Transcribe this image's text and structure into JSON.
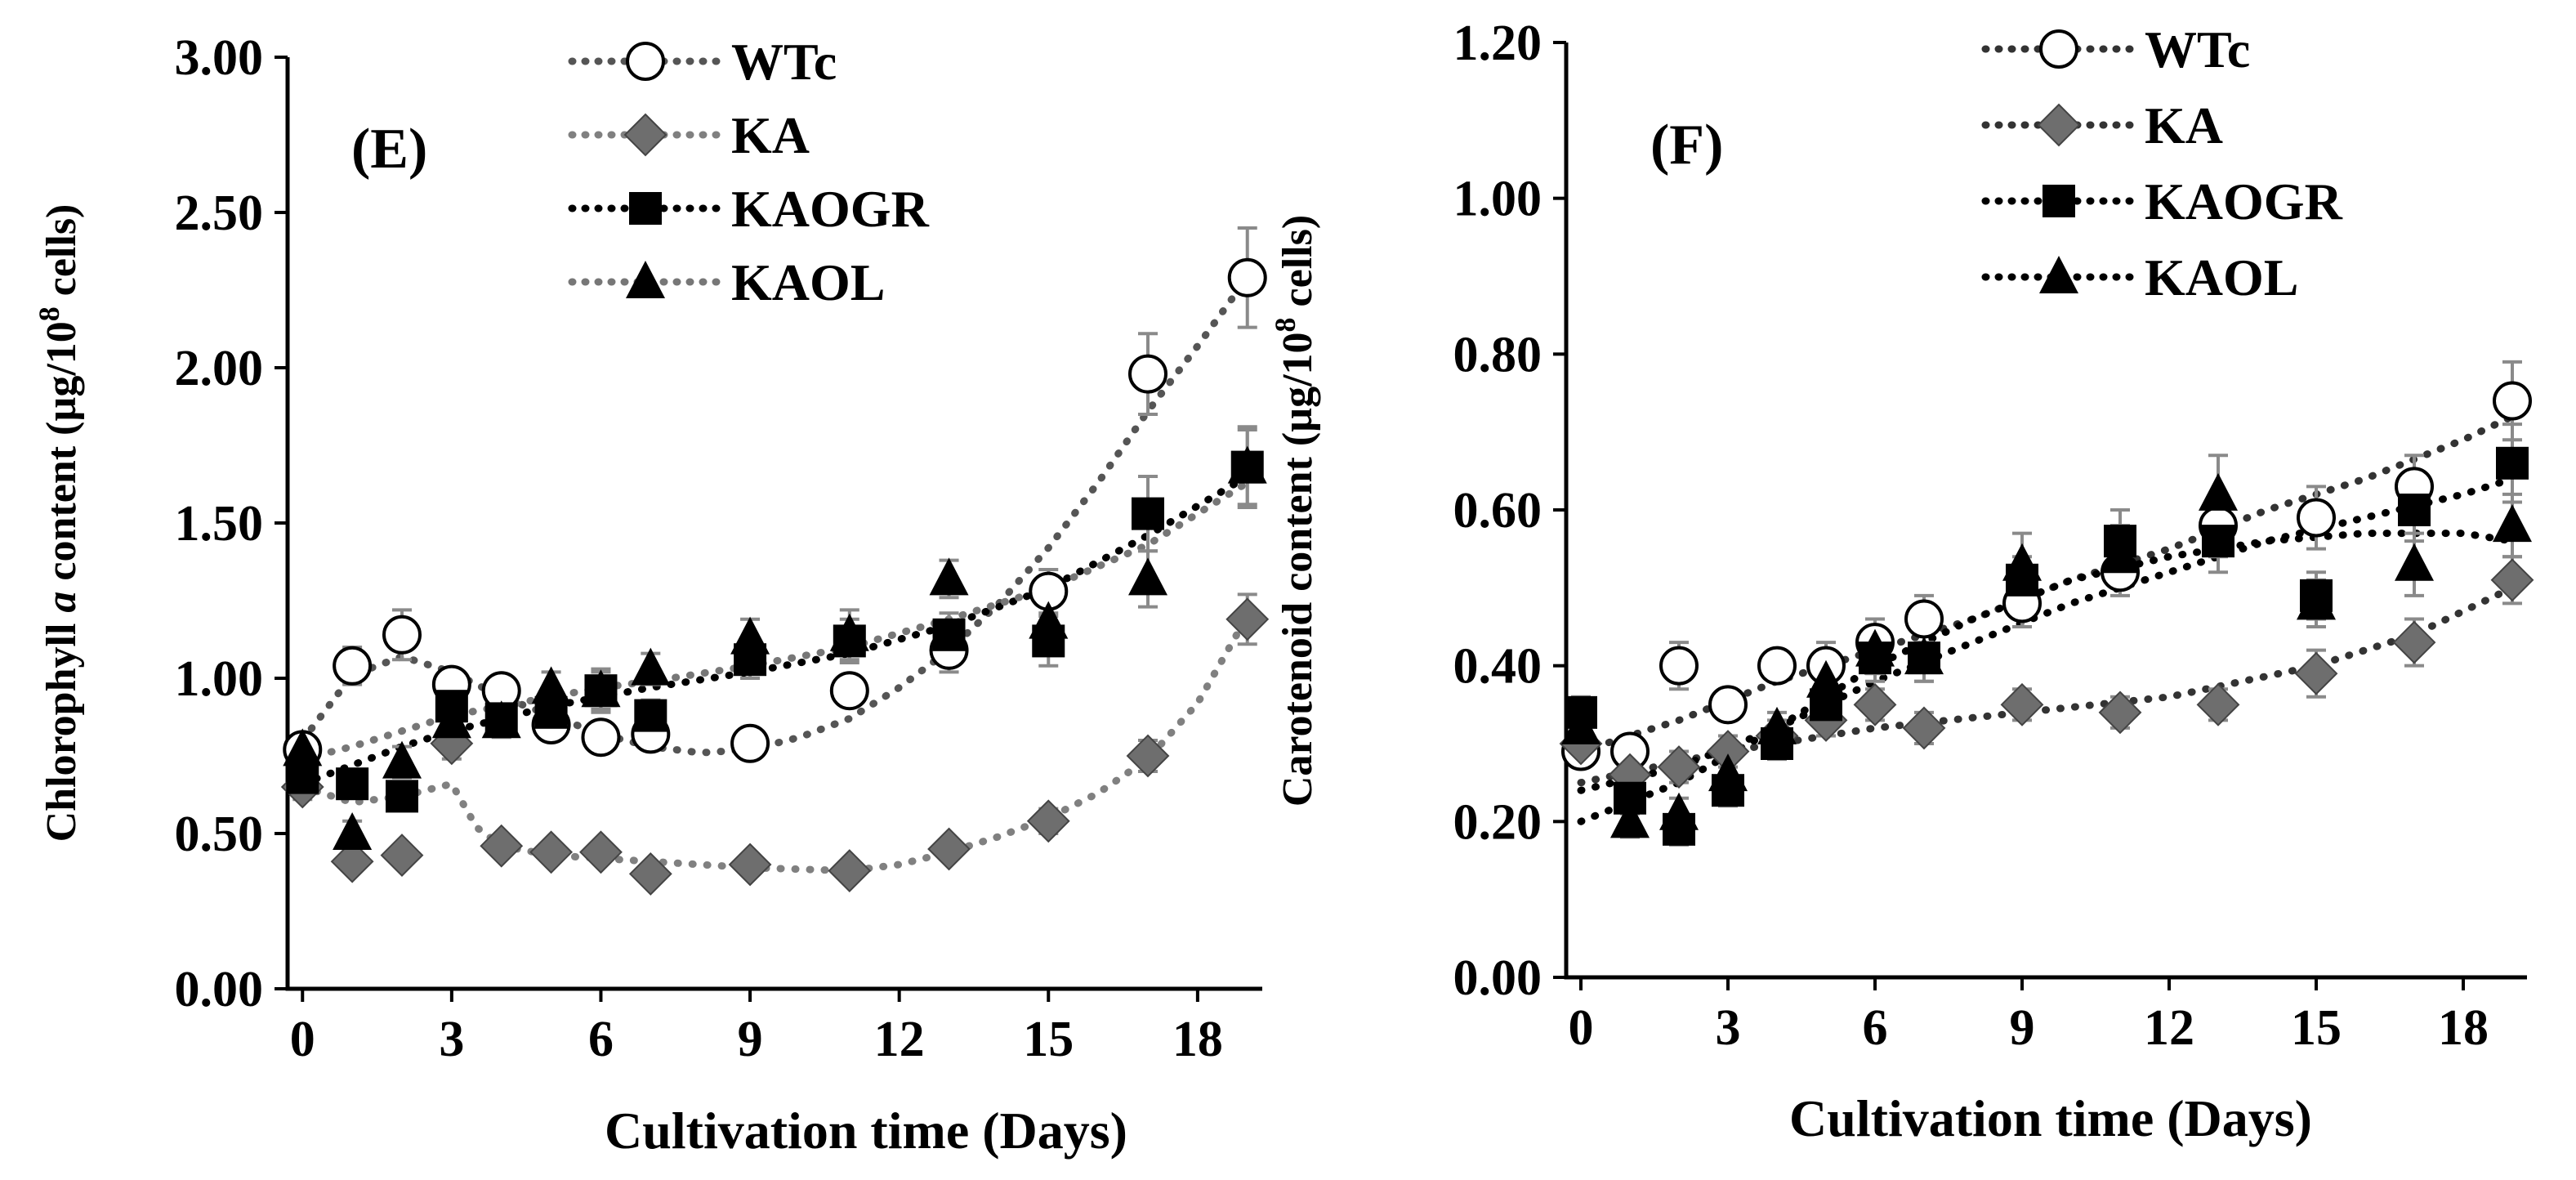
{
  "figure": {
    "panels": [
      "left",
      "right"
    ]
  },
  "chart_data": [
    {
      "type": "scatter",
      "panel_label": "(E)",
      "title": "",
      "xlabel": "Cultivation time (Days)",
      "ylabel_parts": [
        "Chlorophyll ",
        "a",
        " content (µg/10",
        "8",
        " cells)"
      ],
      "xlim": [
        0,
        19
      ],
      "ylim": [
        0,
        3
      ],
      "xticks": [
        0,
        3,
        6,
        9,
        12,
        15,
        18
      ],
      "xtick_labels": [
        "0",
        "3",
        "6",
        "9",
        "12",
        "15",
        "18"
      ],
      "yticks": [
        0,
        0.5,
        1,
        1.5,
        2,
        2.5,
        3
      ],
      "ytick_labels": [
        "0.00",
        "0.50",
        "1.00",
        "1.50",
        "2.00",
        "2.50",
        "3.00"
      ],
      "legend_position": "top-center",
      "series": [
        {
          "name": "WTc",
          "marker": "circle",
          "color": "#000000",
          "line_color": "#555555",
          "x": [
            0,
            1,
            2,
            3,
            4,
            5,
            6,
            7,
            9,
            11,
            13,
            15,
            17,
            19
          ],
          "y": [
            0.77,
            1.04,
            1.14,
            0.98,
            0.96,
            0.85,
            0.81,
            0.82,
            0.79,
            0.96,
            1.09,
            1.28,
            1.98,
            2.29
          ],
          "err": [
            0.05,
            0.06,
            0.08,
            0.05,
            0.04,
            0.05,
            0.05,
            0.05,
            0.05,
            0.05,
            0.07,
            0.07,
            0.13,
            0.16
          ],
          "fit": [
            [
              0,
              0.8
            ],
            [
              1,
              1.01
            ],
            [
              2,
              1.07
            ],
            [
              3,
              1.02
            ],
            [
              4,
              0.94
            ],
            [
              5,
              0.88
            ],
            [
              6,
              0.82
            ],
            [
              7,
              0.78
            ],
            [
              8,
              0.76
            ],
            [
              9,
              0.77
            ],
            [
              10,
              0.81
            ],
            [
              11,
              0.87
            ],
            [
              12,
              0.97
            ],
            [
              13,
              1.09
            ],
            [
              14,
              1.24
            ],
            [
              15,
              1.42
            ],
            [
              16,
              1.63
            ],
            [
              17,
              1.86
            ],
            [
              18,
              2.07
            ],
            [
              19,
              2.29
            ]
          ]
        },
        {
          "name": "KA",
          "marker": "diamond",
          "color": "#6e6e6e",
          "line_color": "#808080",
          "x": [
            0,
            1,
            2,
            3,
            4,
            5,
            6,
            7,
            9,
            11,
            13,
            15,
            17,
            19
          ],
          "y": [
            0.65,
            0.41,
            0.43,
            0.79,
            0.46,
            0.44,
            0.44,
            0.37,
            0.4,
            0.38,
            0.45,
            0.54,
            0.75,
            1.19
          ],
          "err": [
            0.04,
            0.03,
            0.03,
            0.05,
            0.03,
            0.03,
            0.03,
            0.03,
            0.03,
            0.03,
            0.03,
            0.04,
            0.05,
            0.08
          ],
          "fit": [
            [
              0,
              0.65
            ],
            [
              1,
              0.6
            ],
            [
              2,
              0.62
            ],
            [
              3,
              0.66
            ],
            [
              3.5,
              0.52
            ],
            [
              4,
              0.46
            ],
            [
              5,
              0.43
            ],
            [
              6,
              0.42
            ],
            [
              7,
              0.41
            ],
            [
              9,
              0.39
            ],
            [
              11,
              0.38
            ],
            [
              12,
              0.4
            ],
            [
              13,
              0.44
            ],
            [
              14,
              0.49
            ],
            [
              15,
              0.55
            ],
            [
              16,
              0.63
            ],
            [
              17,
              0.74
            ],
            [
              18,
              0.92
            ],
            [
              19,
              1.2
            ]
          ]
        },
        {
          "name": "KAOGR",
          "marker": "square",
          "color": "#000000",
          "line_color": "#000000",
          "x": [
            0,
            1,
            2,
            3,
            4,
            5,
            6,
            7,
            9,
            11,
            13,
            15,
            17,
            19
          ],
          "y": [
            0.68,
            0.66,
            0.62,
            0.91,
            0.87,
            0.89,
            0.96,
            0.88,
            1.06,
            1.12,
            1.14,
            1.12,
            1.53,
            1.68
          ],
          "err": [
            0.04,
            0.04,
            0.04,
            0.05,
            0.05,
            0.05,
            0.07,
            0.05,
            0.06,
            0.07,
            0.07,
            0.08,
            0.12,
            0.13
          ],
          "fit": [
            [
              0,
              0.66
            ],
            [
              1,
              0.72
            ],
            [
              2,
              0.78
            ],
            [
              3,
              0.83
            ],
            [
              4,
              0.87
            ],
            [
              5,
              0.91
            ],
            [
              6,
              0.94
            ],
            [
              7,
              0.97
            ],
            [
              9,
              1.02
            ],
            [
              11,
              1.08
            ],
            [
              13,
              1.17
            ],
            [
              15,
              1.29
            ],
            [
              17,
              1.46
            ],
            [
              19,
              1.65
            ]
          ]
        },
        {
          "name": "KAOL",
          "marker": "triangle",
          "color": "#000000",
          "line_color": "#777777",
          "x": [
            0,
            1,
            2,
            3,
            4,
            5,
            6,
            7,
            9,
            11,
            13,
            15,
            17,
            19
          ],
          "y": [
            0.77,
            0.5,
            0.73,
            0.86,
            0.86,
            0.97,
            0.96,
            1.03,
            1.13,
            1.14,
            1.32,
            1.18,
            1.32,
            1.68
          ],
          "err": [
            0.04,
            0.04,
            0.05,
            0.05,
            0.05,
            0.05,
            0.06,
            0.05,
            0.06,
            0.08,
            0.06,
            0.08,
            0.09,
            0.12
          ],
          "fit": [
            [
              0,
              0.74
            ],
            [
              1,
              0.78
            ],
            [
              2,
              0.83
            ],
            [
              3,
              0.88
            ],
            [
              4,
              0.91
            ],
            [
              5,
              0.94
            ],
            [
              6,
              0.97
            ],
            [
              7,
              0.99
            ],
            [
              9,
              1.04
            ],
            [
              11,
              1.1
            ],
            [
              13,
              1.19
            ],
            [
              15,
              1.29
            ],
            [
              17,
              1.43
            ],
            [
              19,
              1.63
            ]
          ]
        }
      ]
    },
    {
      "type": "scatter",
      "panel_label": "(F)",
      "title": "",
      "xlabel": "Cultivation time (Days)",
      "ylabel_parts": [
        "Carotenoid content (µg/10",
        "8",
        " cells)"
      ],
      "xlim": [
        0,
        19
      ],
      "ylim": [
        0,
        1.2
      ],
      "xticks": [
        0,
        3,
        6,
        9,
        12,
        15,
        18
      ],
      "xtick_labels": [
        "0",
        "3",
        "6",
        "9",
        "12",
        "15",
        "18"
      ],
      "yticks": [
        0,
        0.2,
        0.4,
        0.6,
        0.8,
        1.0,
        1.2
      ],
      "ytick_labels": [
        "0.00",
        "0.20",
        "0.40",
        "0.60",
        "0.80",
        "1.00",
        "1.20"
      ],
      "legend_position": "top-center",
      "series": [
        {
          "name": "WTc",
          "marker": "circle",
          "color": "#000000",
          "line_color": "#333333",
          "x": [
            0,
            1,
            2,
            3,
            4,
            5,
            6,
            7,
            9,
            11,
            13,
            15,
            17,
            19
          ],
          "y": [
            0.29,
            0.29,
            0.4,
            0.35,
            0.4,
            0.4,
            0.43,
            0.46,
            0.48,
            0.52,
            0.58,
            0.59,
            0.63,
            0.74
          ],
          "err": [
            0.02,
            0.02,
            0.03,
            0.02,
            0.02,
            0.03,
            0.03,
            0.03,
            0.03,
            0.03,
            0.04,
            0.04,
            0.04,
            0.05
          ],
          "fit": [
            [
              0,
              0.29
            ],
            [
              2,
              0.33
            ],
            [
              4,
              0.38
            ],
            [
              6,
              0.42
            ],
            [
              8,
              0.46
            ],
            [
              10,
              0.51
            ],
            [
              12,
              0.55
            ],
            [
              14,
              0.6
            ],
            [
              16,
              0.64
            ],
            [
              18,
              0.69
            ],
            [
              19,
              0.72
            ]
          ]
        },
        {
          "name": "KA",
          "marker": "diamond",
          "color": "#6e6e6e",
          "line_color": "#333333",
          "x": [
            0,
            1,
            2,
            3,
            4,
            5,
            6,
            7,
            9,
            11,
            13,
            15,
            17,
            19
          ],
          "y": [
            0.3,
            0.26,
            0.27,
            0.29,
            0.31,
            0.33,
            0.35,
            0.32,
            0.35,
            0.34,
            0.35,
            0.39,
            0.43,
            0.51
          ],
          "err": [
            0.02,
            0.02,
            0.02,
            0.02,
            0.02,
            0.02,
            0.02,
            0.02,
            0.02,
            0.02,
            0.02,
            0.03,
            0.03,
            0.03
          ],
          "fit": [
            [
              0,
              0.25
            ],
            [
              3,
              0.29
            ],
            [
              6,
              0.32
            ],
            [
              9,
              0.34
            ],
            [
              12,
              0.36
            ],
            [
              15,
              0.4
            ],
            [
              17,
              0.44
            ],
            [
              19,
              0.5
            ]
          ]
        },
        {
          "name": "KAOGR",
          "marker": "square",
          "color": "#000000",
          "line_color": "#000000",
          "x": [
            0,
            1,
            2,
            3,
            4,
            5,
            6,
            7,
            9,
            11,
            13,
            15,
            17,
            19
          ],
          "y": [
            0.34,
            0.23,
            0.19,
            0.24,
            0.3,
            0.35,
            0.41,
            0.41,
            0.51,
            0.56,
            0.56,
            0.49,
            0.6,
            0.66
          ],
          "err": [
            0.02,
            0.02,
            0.02,
            0.02,
            0.02,
            0.02,
            0.03,
            0.03,
            0.03,
            0.04,
            0.04,
            0.03,
            0.04,
            0.05
          ],
          "fit": [
            [
              0,
              0.24
            ],
            [
              2,
              0.27
            ],
            [
              4,
              0.32
            ],
            [
              6,
              0.38
            ],
            [
              8,
              0.43
            ],
            [
              10,
              0.48
            ],
            [
              12,
              0.52
            ],
            [
              14,
              0.56
            ],
            [
              16,
              0.59
            ],
            [
              18,
              0.62
            ],
            [
              19,
              0.64
            ]
          ]
        },
        {
          "name": "KAOL",
          "marker": "triangle",
          "color": "#000000",
          "line_color": "#000000",
          "x": [
            0,
            1,
            2,
            3,
            4,
            5,
            6,
            7,
            9,
            11,
            13,
            15,
            17,
            19
          ],
          "y": [
            0.32,
            0.2,
            0.21,
            0.26,
            0.32,
            0.38,
            0.42,
            0.41,
            0.53,
            0.54,
            0.62,
            0.48,
            0.53,
            0.58
          ],
          "err": [
            0.02,
            0.02,
            0.02,
            0.02,
            0.02,
            0.03,
            0.03,
            0.03,
            0.04,
            0.04,
            0.05,
            0.03,
            0.04,
            0.04
          ],
          "fit": [
            [
              0,
              0.2
            ],
            [
              2,
              0.25
            ],
            [
              4,
              0.32
            ],
            [
              6,
              0.4
            ],
            [
              8,
              0.46
            ],
            [
              10,
              0.51
            ],
            [
              12,
              0.54
            ],
            [
              14,
              0.56
            ],
            [
              16,
              0.57
            ],
            [
              18,
              0.57
            ],
            [
              19,
              0.56
            ]
          ]
        }
      ]
    }
  ]
}
